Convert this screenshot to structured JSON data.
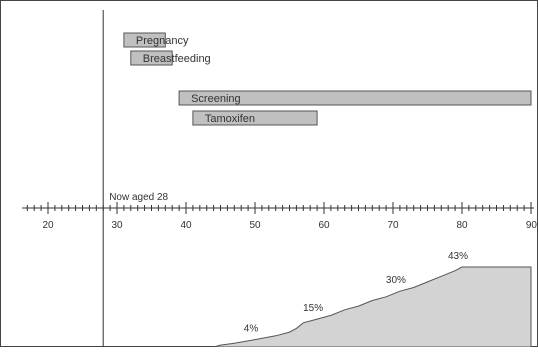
{
  "now_marker": {
    "label": "Now aged 28",
    "age": 28
  },
  "colors": {
    "bar_fill": "#c0c0c0",
    "bar_stroke": "#555555",
    "axis": "#333333",
    "area_fill": "#d3d3d3",
    "text": "#333333"
  },
  "chart_data": [
    {
      "type": "bar",
      "title": "",
      "xlabel": "",
      "xlim": [
        17,
        90
      ],
      "x_ticks": [
        20,
        30,
        40,
        50,
        60,
        70,
        80,
        90
      ],
      "bars": [
        {
          "label": "Pregnancy",
          "start": 31,
          "end": 37
        },
        {
          "label": "Breastfeeding",
          "start": 32,
          "end": 38
        },
        {
          "label": "Screening",
          "start": 39,
          "end": 90
        },
        {
          "label": "Tamoxifen",
          "start": 41,
          "end": 59
        }
      ]
    },
    {
      "type": "area",
      "title": "",
      "x": [
        44,
        45,
        47,
        50,
        53,
        55,
        56,
        57,
        59,
        61,
        63,
        65,
        67,
        69,
        71,
        73,
        75,
        77,
        79,
        80,
        90
      ],
      "y": [
        0,
        1,
        2,
        4,
        6,
        8,
        10,
        13,
        15,
        17,
        20,
        22,
        25,
        27,
        30,
        32,
        35,
        38,
        41,
        43,
        43
      ],
      "annotations": [
        {
          "label": "4%",
          "x": 50,
          "y": 4
        },
        {
          "label": "15%",
          "x": 59,
          "y": 15
        },
        {
          "label": "30%",
          "x": 71,
          "y": 30
        },
        {
          "label": "43%",
          "x": 80,
          "y": 43
        }
      ]
    }
  ]
}
